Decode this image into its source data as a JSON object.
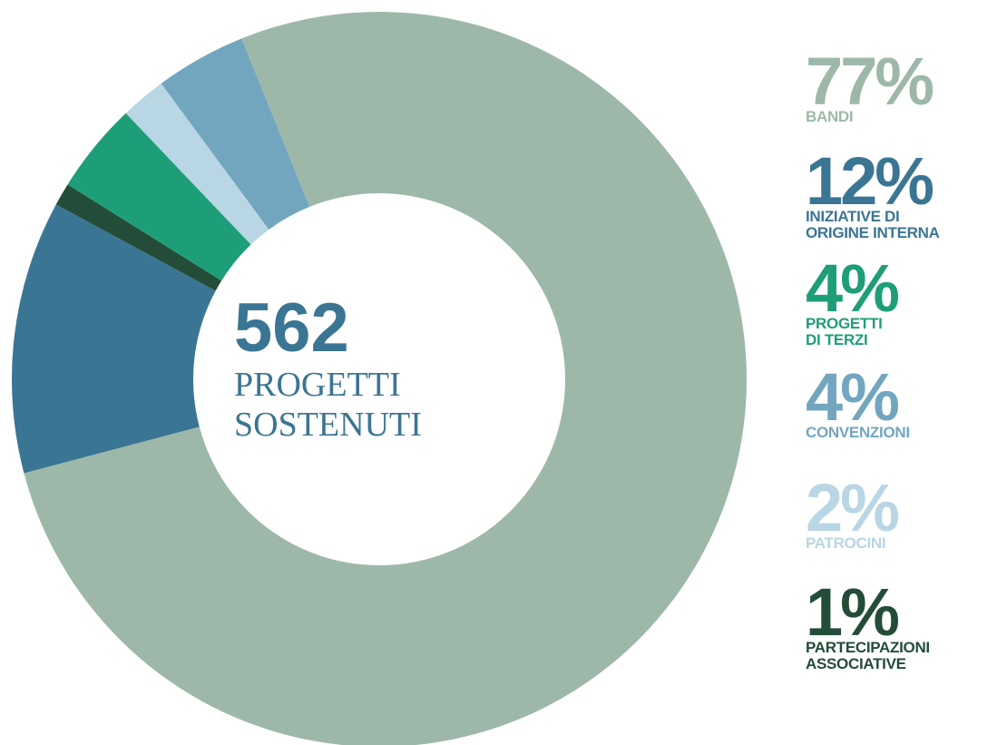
{
  "chart_data": {
    "type": "donut",
    "center_value": "562",
    "center_label": "PROGETTI\nSOSTENUTI",
    "categories": [
      "BANDI",
      "INIZIATIVE DI\nORIGINE INTERNA",
      "PROGETTI\nDI TERZI",
      "CONVENZIONI",
      "PATROCINI",
      "PARTECIPAZIONI\nASSOCIATIVE"
    ],
    "values": [
      77,
      12,
      4,
      4,
      2,
      1
    ],
    "value_labels": [
      "77%",
      "12%",
      "4%",
      "4%",
      "2%",
      "1%"
    ],
    "colors": [
      "#9db8a9",
      "#3b7594",
      "#1e9e78",
      "#72a6bf",
      "#b9d6e5",
      "#234d38"
    ]
  }
}
